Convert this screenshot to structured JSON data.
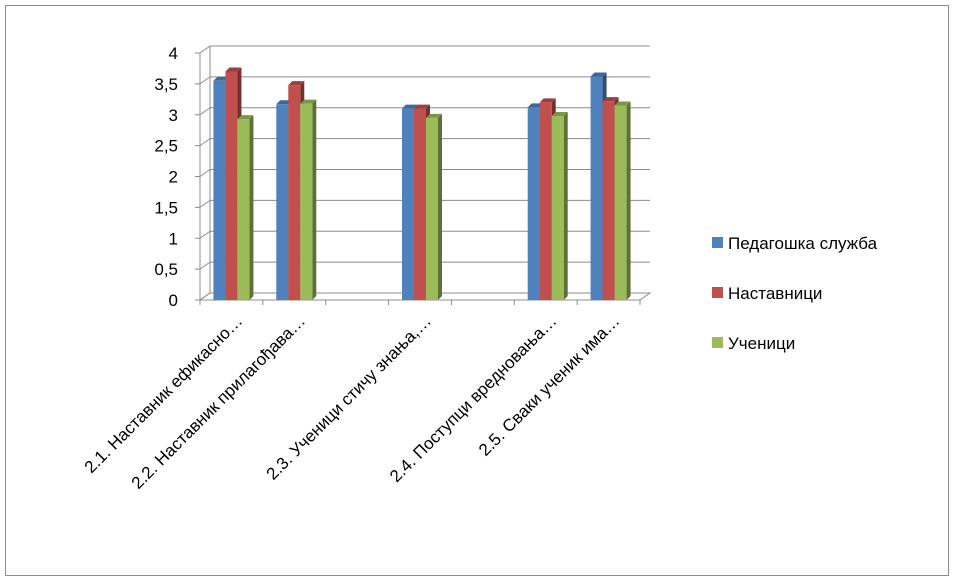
{
  "chart_data": {
    "type": "bar",
    "categories": [
      "2.1. Наставник ефикасно…",
      "2.2. Наставник прилагођава…",
      "",
      "2.3. Ученици стичу знања,…",
      "",
      "2.4. Поступци вредновања…",
      "2.5. Сваки ученик има…"
    ],
    "series": [
      {
        "name": "Педагошка служба",
        "values": [
          3.55,
          3.17,
          null,
          3.1,
          null,
          3.12,
          3.62
        ],
        "color": "#4f81bd"
      },
      {
        "name": "Наставници",
        "values": [
          3.7,
          3.48,
          null,
          3.1,
          null,
          3.2,
          3.22
        ],
        "color": "#c0504d"
      },
      {
        "name": "Ученици",
        "values": [
          2.93,
          3.18,
          null,
          2.95,
          null,
          2.98,
          3.15
        ],
        "color": "#9bbb59"
      }
    ],
    "yticks": [
      "0",
      "0,5",
      "1",
      "1,5",
      "2",
      "2,5",
      "3",
      "3,5",
      "4"
    ],
    "ylim": [
      0,
      4
    ],
    "grid": true,
    "legend_position": "right"
  }
}
